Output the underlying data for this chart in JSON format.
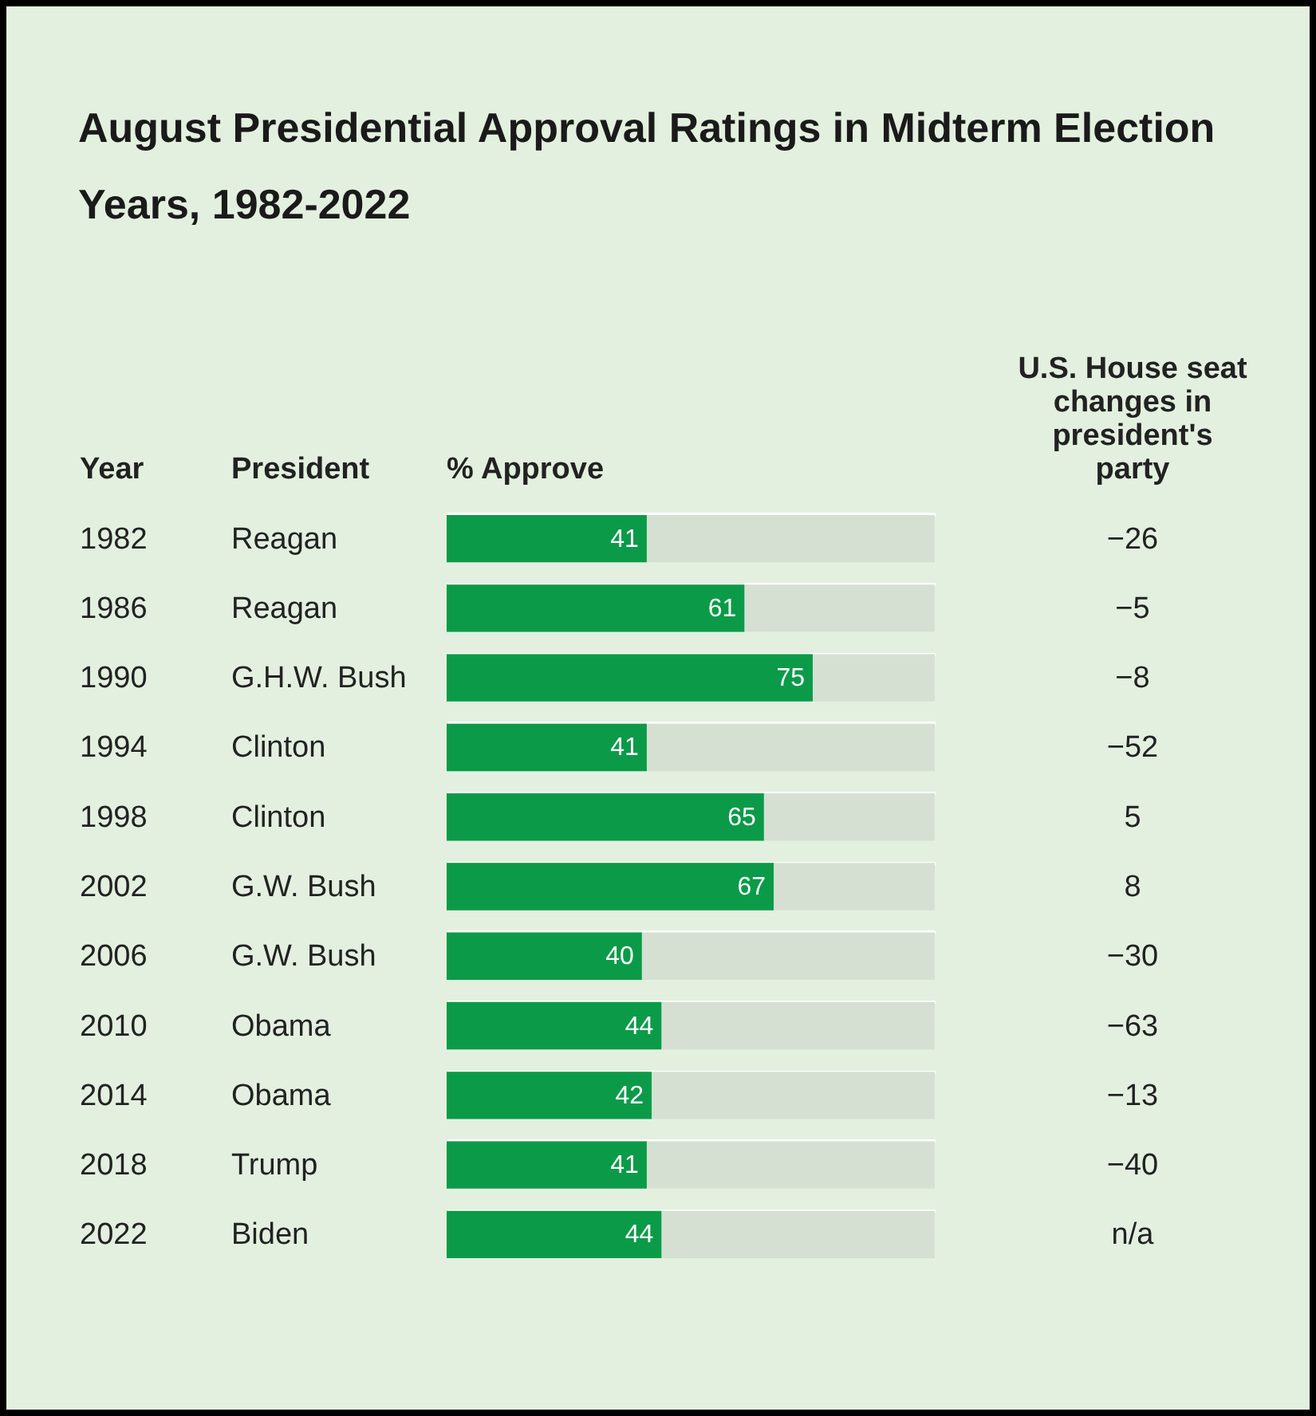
{
  "chart_data": {
    "type": "bar",
    "orientation": "horizontal",
    "title": "August Presidential Approval Ratings in Midterm Election Years, 1982-2022",
    "categories": [
      "1982",
      "1986",
      "1990",
      "1994",
      "1998",
      "2002",
      "2006",
      "2010",
      "2014",
      "2018",
      "2022"
    ],
    "values": [
      41,
      61,
      75,
      41,
      65,
      67,
      40,
      44,
      42,
      41,
      44
    ],
    "color": "#0b9b48",
    "xlim": [
      0,
      100
    ],
    "data_labels": true,
    "grid": "y",
    "tick_labels": "y",
    "annotations": [
      "Year",
      "President",
      "% Approve",
      "U.S. House seat changes in president's party",
      "Reagan",
      "Reagan",
      "G.H.W. Bush",
      "Clinton",
      "Clinton",
      "G.W. Bush",
      "G.W. Bush",
      "Obama",
      "Obama",
      "Trump",
      "Biden",
      "−26",
      "−5",
      "−8",
      "−52",
      "5",
      "8",
      "−30",
      "−63",
      "−13",
      "−40",
      "n/a"
    ]
  }
}
